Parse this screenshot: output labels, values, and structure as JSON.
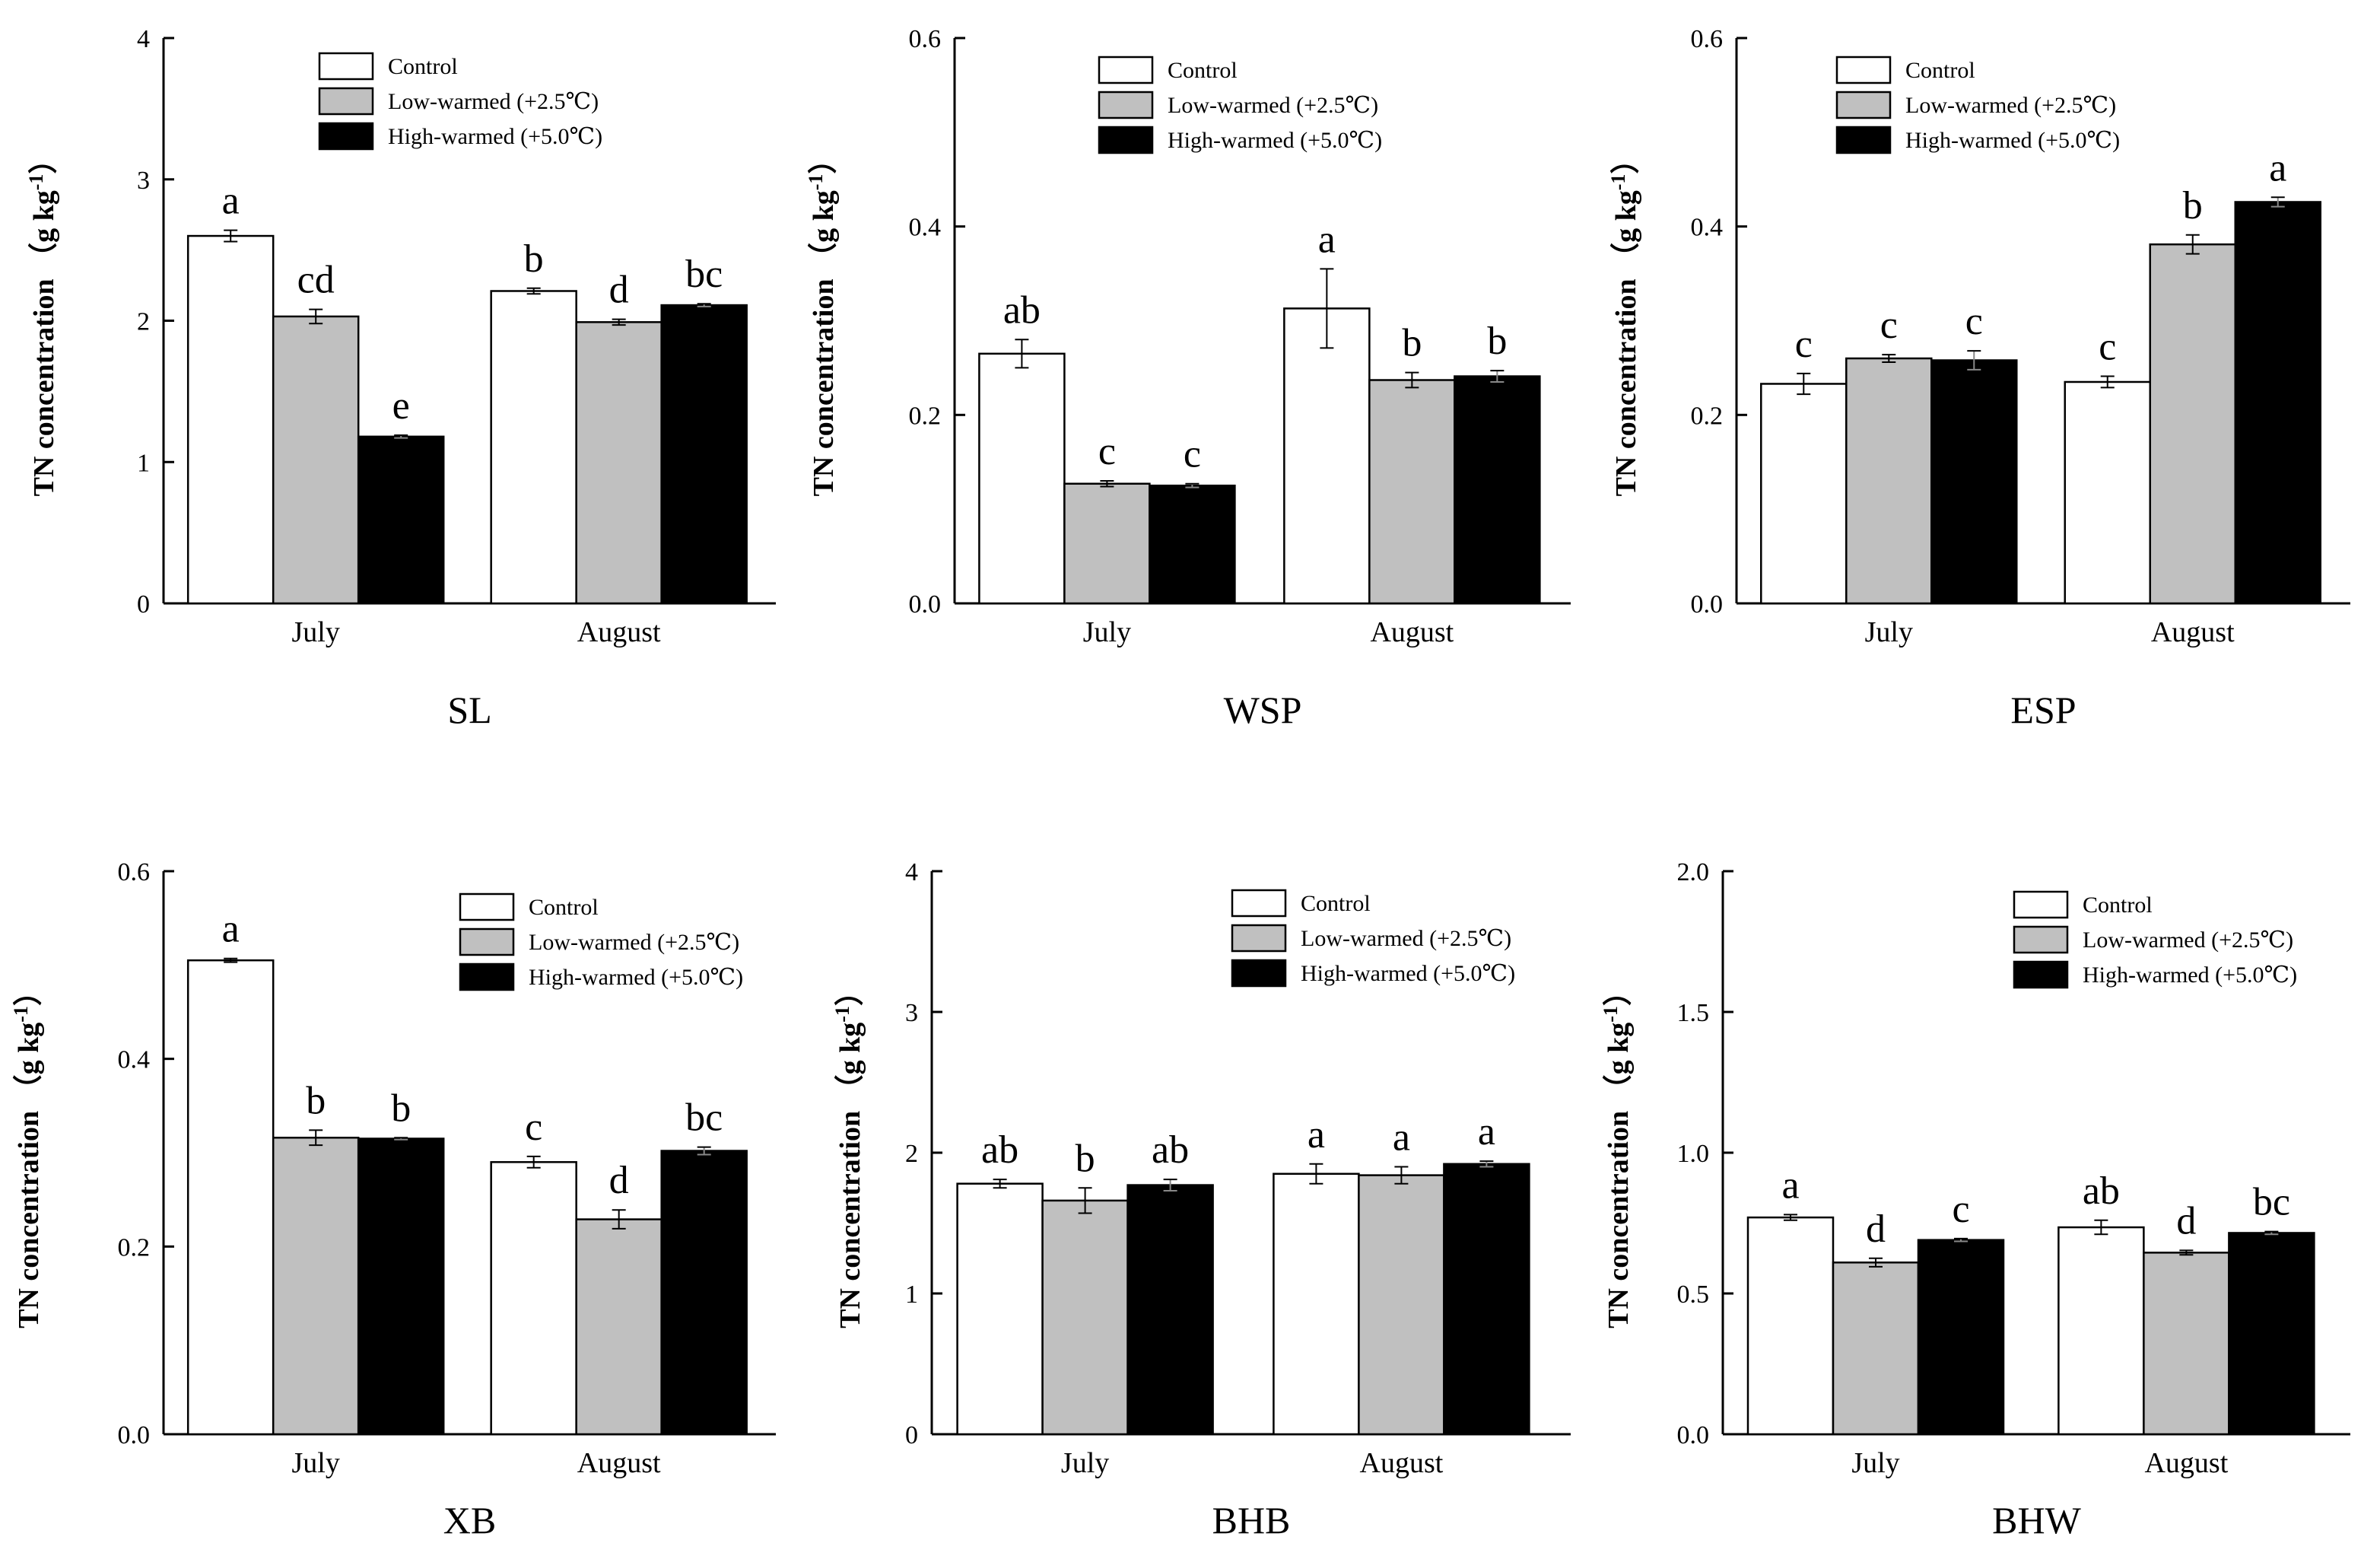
{
  "chart_data": [
    {
      "type": "bar",
      "title": "SL",
      "ylabel": "TN concentration （g kg-1）",
      "ylim": [
        0,
        4
      ],
      "yticks": [
        "0",
        "1",
        "2",
        "3",
        "4"
      ],
      "categories": [
        "July",
        "August"
      ],
      "legend": [
        "Control",
        "Low-warmed (+2.5℃)",
        "High-warmed (+5.0℃)"
      ],
      "series": [
        {
          "name": "Control",
          "values": [
            2.6,
            2.21
          ],
          "errors": [
            0.04,
            0.02
          ],
          "letters": [
            "a",
            "b"
          ]
        },
        {
          "name": "Low-warmed (+2.5℃)",
          "values": [
            2.03,
            1.99
          ],
          "errors": [
            0.05,
            0.02
          ],
          "letters": [
            "cd",
            "d"
          ]
        },
        {
          "name": "High-warmed (+5.0℃)",
          "values": [
            1.18,
            2.11
          ],
          "errors": [
            0.01,
            0.01
          ],
          "letters": [
            "e",
            "bc"
          ]
        }
      ]
    },
    {
      "type": "bar",
      "title": "WSP",
      "ylabel": "TN concentration （g kg-1）",
      "ylim": [
        0,
        0.6
      ],
      "yticks": [
        "0.0",
        "0.2",
        "0.4",
        "0.6"
      ],
      "categories": [
        "July",
        "August"
      ],
      "legend": [
        "Control",
        "Low-warmed (+2.5℃)",
        "High-warmed (+5.0℃)"
      ],
      "series": [
        {
          "name": "Control",
          "values": [
            0.265,
            0.313
          ],
          "errors": [
            0.015,
            0.042
          ],
          "letters": [
            "ab",
            "a"
          ]
        },
        {
          "name": "Low-warmed (+2.5℃)",
          "values": [
            0.127,
            0.237
          ],
          "errors": [
            0.003,
            0.008
          ],
          "letters": [
            "c",
            "b"
          ]
        },
        {
          "name": "High-warmed (+5.0℃)",
          "values": [
            0.125,
            0.241
          ],
          "errors": [
            0.002,
            0.006
          ],
          "letters": [
            "c",
            "b"
          ]
        }
      ]
    },
    {
      "type": "bar",
      "title": "ESP",
      "ylabel": "TN concentration （g kg-1）",
      "ylim": [
        0,
        0.6
      ],
      "yticks": [
        "0.0",
        "0.2",
        "0.4",
        "0.6"
      ],
      "categories": [
        "July",
        "August"
      ],
      "legend": [
        "Control",
        "Low-warmed (+2.5℃)",
        "High-warmed (+5.0℃)"
      ],
      "series": [
        {
          "name": "Control",
          "values": [
            0.233,
            0.235
          ],
          "errors": [
            0.011,
            0.006
          ],
          "letters": [
            "c",
            "c"
          ]
        },
        {
          "name": "Low-warmed (+2.5℃)",
          "values": [
            0.26,
            0.381
          ],
          "errors": [
            0.004,
            0.01
          ],
          "letters": [
            "c",
            "b"
          ]
        },
        {
          "name": "High-warmed (+5.0℃)",
          "values": [
            0.258,
            0.426
          ],
          "errors": [
            0.01,
            0.005
          ],
          "letters": [
            "c",
            "a"
          ]
        }
      ]
    },
    {
      "type": "bar",
      "title": "XB",
      "ylabel": "TN concentration （g kg-1）",
      "ylim": [
        0,
        0.6
      ],
      "yticks": [
        "0.0",
        "0.2",
        "0.4",
        "0.6"
      ],
      "categories": [
        "July",
        "August"
      ],
      "legend": [
        "Control",
        "Low-warmed (+2.5℃)",
        "High-warmed (+5.0℃)"
      ],
      "series": [
        {
          "name": "Control",
          "values": [
            0.505,
            0.29
          ],
          "errors": [
            0.002,
            0.006
          ],
          "letters": [
            "a",
            "c"
          ]
        },
        {
          "name": "Low-warmed (+2.5℃)",
          "values": [
            0.316,
            0.229
          ],
          "errors": [
            0.008,
            0.01
          ],
          "letters": [
            "b",
            "d"
          ]
        },
        {
          "name": "High-warmed (+5.0℃)",
          "values": [
            0.315,
            0.302
          ],
          "errors": [
            0.001,
            0.004
          ],
          "letters": [
            "b",
            "bc"
          ]
        }
      ]
    },
    {
      "type": "bar",
      "title": "BHB",
      "ylabel": "TN concentration （g kg-1）",
      "ylim": [
        0,
        4
      ],
      "yticks": [
        "0",
        "1",
        "2",
        "3",
        "4"
      ],
      "categories": [
        "July",
        "August"
      ],
      "legend": [
        "Control",
        "Low-warmed (+2.5℃)",
        "High-warmed (+5.0℃)"
      ],
      "series": [
        {
          "name": "Control",
          "values": [
            1.78,
            1.85
          ],
          "errors": [
            0.03,
            0.07
          ],
          "letters": [
            "ab",
            "a"
          ]
        },
        {
          "name": "Low-warmed (+2.5℃)",
          "values": [
            1.66,
            1.84
          ],
          "errors": [
            0.09,
            0.06
          ],
          "letters": [
            "b",
            "a"
          ]
        },
        {
          "name": "High-warmed (+5.0℃)",
          "values": [
            1.77,
            1.92
          ],
          "errors": [
            0.04,
            0.02
          ],
          "letters": [
            "ab",
            "a"
          ]
        }
      ]
    },
    {
      "type": "bar",
      "title": "BHW",
      "ylabel": "TN concentration （g kg-1）",
      "ylim": [
        0,
        2
      ],
      "yticks": [
        "0.0",
        "0.5",
        "1.0",
        "1.5",
        "2.0"
      ],
      "categories": [
        "July",
        "August"
      ],
      "legend": [
        "Control",
        "Low-warmed (+2.5℃)",
        "High-warmed (+5.0℃)"
      ],
      "series": [
        {
          "name": "Control",
          "values": [
            0.77,
            0.735
          ],
          "errors": [
            0.01,
            0.025
          ],
          "letters": [
            "a",
            "ab"
          ]
        },
        {
          "name": "Low-warmed (+2.5℃)",
          "values": [
            0.61,
            0.645
          ],
          "errors": [
            0.015,
            0.008
          ],
          "letters": [
            "d",
            "d"
          ]
        },
        {
          "name": "High-warmed (+5.0℃)",
          "values": [
            0.69,
            0.715
          ],
          "errors": [
            0.005,
            0.005
          ],
          "letters": [
            "c",
            "bc"
          ]
        }
      ]
    }
  ],
  "colors": {
    "control": "#ffffff",
    "low_warmed": "#c0c0c0",
    "high_warmed": "#000000",
    "stroke": "#000000"
  }
}
